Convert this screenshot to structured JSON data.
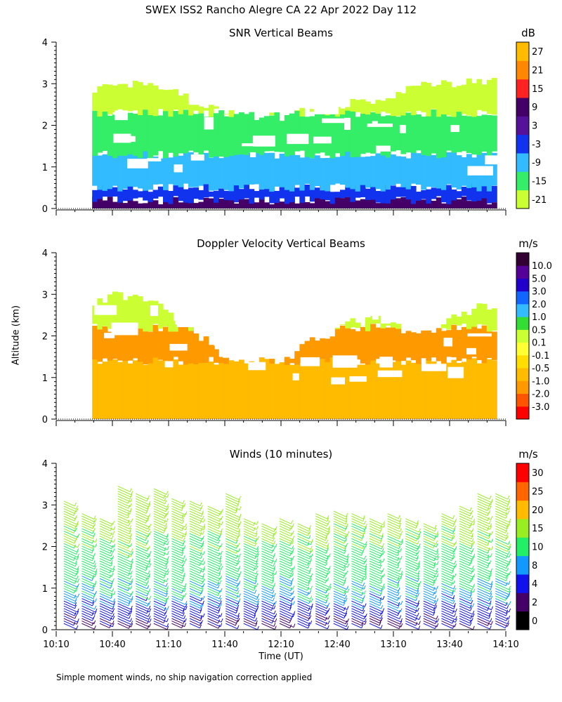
{
  "title": "SWEX ISS2 Rancho Alegre CA  22 Apr 2022 Day 112",
  "axis_label_y": "Altitude (km)",
  "axis_label_x": "Time (UT)",
  "footnote": "Simple moment winds, no ship navigation correction applied",
  "chart_data": [
    {
      "type": "heatmap",
      "title": "SNR Vertical Beams",
      "xlabel": "Time (UT)",
      "ylabel": "Altitude (km)",
      "xlim": [
        10.1667,
        14.1667
      ],
      "ylim": [
        0,
        4
      ],
      "yticks": [
        "0",
        "1",
        "2",
        "3",
        "4"
      ],
      "units": "dB",
      "colorbar": {
        "labels": [
          "-21",
          "-15",
          "-9",
          "-3",
          "3",
          "9",
          "15",
          "21",
          "27"
        ],
        "colors": [
          "#ccff33",
          "#33ee66",
          "#33bbff",
          "#1133ee",
          "#551199",
          "#440066",
          "#ff2222",
          "#ff8800",
          "#ffbb00"
        ]
      },
      "data_top_km": [
        2.8,
        2.9,
        3.0,
        2.9,
        2.7,
        2.4,
        2.2,
        2.2,
        2.4,
        2.5,
        2.6,
        2.9,
        3.0,
        3.1,
        3.1
      ],
      "bands_km": [
        {
          "from": 0.0,
          "to": 0.2,
          "color": "#440066"
        },
        {
          "from": 0.2,
          "to": 0.5,
          "color": "#1133ee"
        },
        {
          "from": 0.5,
          "to": 1.3,
          "color": "#33bbff"
        },
        {
          "from": 1.3,
          "to": 2.3,
          "color": "#33ee66"
        },
        {
          "from": 2.3,
          "to": 3.2,
          "color": "#ccff33"
        }
      ]
    },
    {
      "type": "heatmap",
      "title": "Doppler Velocity Vertical Beams",
      "xlabel": "Time (UT)",
      "ylabel": "Altitude (km)",
      "xlim": [
        10.1667,
        14.1667
      ],
      "ylim": [
        0,
        4
      ],
      "yticks": [
        "0",
        "1",
        "2",
        "3",
        "4"
      ],
      "units": "m/s",
      "colorbar": {
        "labels": [
          "-3.0",
          "-2.0",
          "-1.0",
          "-0.5",
          "-0.1",
          "0.1",
          "0.5",
          "1.0",
          "2.0",
          "3.0",
          "5.0",
          "10.0"
        ],
        "colors": [
          "#ff0000",
          "#ff5500",
          "#ff9900",
          "#ffbb00",
          "#ffdd00",
          "#ffff33",
          "#ccff33",
          "#33dd33",
          "#33bbff",
          "#1166ff",
          "#2200cc",
          "#550099",
          "#330033"
        ]
      },
      "data_top_km": [
        2.6,
        2.8,
        3.0,
        2.8,
        2.3,
        1.6,
        1.4,
        1.4,
        1.9,
        2.3,
        2.4,
        2.0,
        2.3,
        2.7,
        2.8
      ],
      "bands_km": [
        {
          "from": 0.0,
          "to": 1.4,
          "color": "#ffbb00"
        },
        {
          "from": 1.4,
          "to": 2.2,
          "color": "#ff9900"
        },
        {
          "from": 2.2,
          "to": 3.2,
          "color": "#ccff33"
        }
      ]
    },
    {
      "type": "barbs",
      "title": "Winds (10 minutes)",
      "xlabel": "Time (UT)",
      "ylabel": "Altitude (km)",
      "xlim": [
        10.1667,
        14.1667
      ],
      "ylim": [
        0,
        4
      ],
      "yticks": [
        "0",
        "1",
        "2",
        "3",
        "4"
      ],
      "xticks": [
        "10:10",
        "10:40",
        "11:10",
        "11:40",
        "12:10",
        "12:40",
        "13:10",
        "13:40",
        "14:10"
      ],
      "units": "m/s",
      "colorbar": {
        "labels": [
          "0",
          "2",
          "4",
          "8",
          "10",
          "15",
          "20",
          "25",
          "30"
        ],
        "colors": [
          "#000000",
          "#440066",
          "#1111ee",
          "#1199ff",
          "#22ee66",
          "#99ee22",
          "#ffbb00",
          "#ff6600",
          "#ff0000"
        ]
      },
      "profile_tops_km": [
        3.1,
        2.8,
        2.7,
        3.5,
        3.3,
        3.4,
        3.2,
        3.1,
        3.0,
        3.3,
        2.7,
        2.6,
        2.7,
        2.6,
        2.8,
        2.9,
        2.8,
        2.7,
        2.8,
        2.7,
        2.6,
        2.8,
        3.0,
        3.3,
        3.3
      ],
      "speed_profile_ms": [
        {
          "km": 0.3,
          "speed": 4
        },
        {
          "km": 0.8,
          "speed": 9
        },
        {
          "km": 1.5,
          "speed": 12
        },
        {
          "km": 2.2,
          "speed": 15
        },
        {
          "km": 3.0,
          "speed": 18
        }
      ]
    }
  ]
}
